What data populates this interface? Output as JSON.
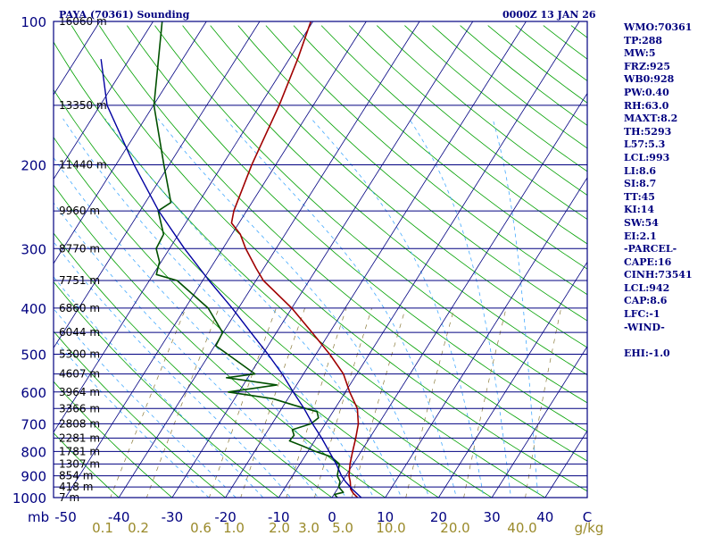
{
  "header": {
    "title_left": "PAYA (70361) Sounding",
    "title_right": "0000Z 13 JAN 26"
  },
  "indices": [
    "WMO:70361",
    "TP:288",
    "MW:5",
    "FRZ:925",
    "WB0:928",
    "PW:0.40",
    "RH:63.0",
    "MAXT:8.2",
    "TH:5293",
    "L57:5.3",
    "LCL:993",
    "LI:8.6",
    "SI:8.7",
    "TT:45",
    "KI:14",
    "SW:54",
    "EI:2.1",
    "-PARCEL-",
    "CAPE:16",
    "CINH:73541",
    "LCL:942",
    "CAP:8.6",
    "LFC:-1",
    "-WIND-",
    "",
    "EHI:-1.0"
  ],
  "colors": {
    "frame": "#000080",
    "isobar": "#000080",
    "isotherm": "#000080",
    "dry_adiabat": "#00a000",
    "moist_adiabat": "#44aaff",
    "mixing_ratio": "#8a7a3a",
    "temperature": "#a00000",
    "dewpoint": "#005000",
    "parcel": "#0000a0",
    "mixing_label": "#9a8a2a"
  },
  "chart_data": {
    "type": "skew-t log-p sounding",
    "title": "PAYA (70361) Sounding",
    "xlabel": "C",
    "ylabel": "mb",
    "x_units_label": "mb",
    "temp_axis_label": "C",
    "mixing_axis_label": "g/kg",
    "xlim": [
      -50,
      50
    ],
    "pressure_range": [
      1000,
      100
    ],
    "pressure_ticks": [
      1000,
      900,
      800,
      700,
      600,
      500,
      400,
      300,
      200,
      100
    ],
    "temp_ticks": [
      -50,
      -40,
      -30,
      -20,
      -10,
      0,
      10,
      20,
      30,
      40
    ],
    "mixing_ratio_ticks": [
      "0.1",
      "0.2",
      "0.6",
      "1.0",
      "2.0",
      "3.0",
      "5.0",
      "10.0",
      "20.0",
      "40.0"
    ],
    "heights": [
      {
        "p": 100,
        "label": "16060 m"
      },
      {
        "p": 150,
        "label": "13350 m"
      },
      {
        "p": 200,
        "label": "11440 m"
      },
      {
        "p": 250,
        "label": "9960 m"
      },
      {
        "p": 300,
        "label": "8770 m"
      },
      {
        "p": 350,
        "label": "7751 m"
      },
      {
        "p": 400,
        "label": "6860 m"
      },
      {
        "p": 450,
        "label": "6044 m"
      },
      {
        "p": 500,
        "label": "5300 m"
      },
      {
        "p": 550,
        "label": "4607 m"
      },
      {
        "p": 600,
        "label": "3964 m"
      },
      {
        "p": 650,
        "label": "3366 m"
      },
      {
        "p": 700,
        "label": "2808 m"
      },
      {
        "p": 750,
        "label": "2281 m"
      },
      {
        "p": 800,
        "label": "1781 m"
      },
      {
        "p": 850,
        "label": "1307 m"
      },
      {
        "p": 900,
        "label": "854 m"
      },
      {
        "p": 950,
        "label": "418 m"
      },
      {
        "p": 1000,
        "label": "7 m"
      }
    ],
    "series": [
      {
        "name": "Temperature",
        "points": [
          [
            1000,
            4.8
          ],
          [
            980,
            3.5
          ],
          [
            960,
            2.5
          ],
          [
            925,
            1.5
          ],
          [
            900,
            0.6
          ],
          [
            850,
            -0.6
          ],
          [
            800,
            -1.6
          ],
          [
            750,
            -2.6
          ],
          [
            700,
            -3.8
          ],
          [
            650,
            -5.8
          ],
          [
            600,
            -9.2
          ],
          [
            550,
            -12.5
          ],
          [
            500,
            -17.4
          ],
          [
            450,
            -23.3
          ],
          [
            400,
            -30.0
          ],
          [
            350,
            -38.6
          ],
          [
            330,
            -41.4
          ],
          [
            300,
            -45.7
          ],
          [
            280,
            -48.4
          ],
          [
            265,
            -51.4
          ],
          [
            250,
            -52.4
          ],
          [
            200,
            -54.5
          ],
          [
            150,
            -56.4
          ],
          [
            120,
            -58.4
          ],
          [
            100,
            -60.4
          ]
        ]
      },
      {
        "name": "Dewpoint",
        "points": [
          [
            1000,
            1.0
          ],
          [
            985,
            0.1
          ],
          [
            975,
            1.5
          ],
          [
            950,
            0.0
          ],
          [
            925,
            -0.4
          ],
          [
            900,
            -1.6
          ],
          [
            850,
            -2.6
          ],
          [
            820,
            -5.1
          ],
          [
            800,
            -8.6
          ],
          [
            780,
            -11.5
          ],
          [
            760,
            -14.7
          ],
          [
            740,
            -14.5
          ],
          [
            720,
            -15.5
          ],
          [
            700,
            -12.7
          ],
          [
            680,
            -12.0
          ],
          [
            660,
            -13.0
          ],
          [
            640,
            -18.0
          ],
          [
            620,
            -22.8
          ],
          [
            600,
            -32.0
          ],
          [
            580,
            -23.7
          ],
          [
            560,
            -34.0
          ],
          [
            550,
            -29.1
          ],
          [
            520,
            -33.5
          ],
          [
            480,
            -39.8
          ],
          [
            450,
            -40.1
          ],
          [
            400,
            -45.7
          ],
          [
            350,
            -54.8
          ],
          [
            340,
            -59.4
          ],
          [
            320,
            -60.3
          ],
          [
            300,
            -62.5
          ],
          [
            280,
            -62.8
          ],
          [
            250,
            -66.6
          ],
          [
            240,
            -65.2
          ],
          [
            200,
            -71.0
          ],
          [
            150,
            -79.9
          ],
          [
            100,
            -88.3
          ]
        ]
      },
      {
        "name": "Parcel",
        "points": [
          [
            1000,
            5.5
          ],
          [
            960,
            2.8
          ],
          [
            925,
            0.6
          ],
          [
            900,
            -0.8
          ],
          [
            850,
            -3.2
          ],
          [
            800,
            -6.0
          ],
          [
            750,
            -9.0
          ],
          [
            700,
            -12.4
          ],
          [
            650,
            -15.8
          ],
          [
            600,
            -19.8
          ],
          [
            550,
            -24.0
          ],
          [
            500,
            -29.0
          ],
          [
            450,
            -34.8
          ],
          [
            400,
            -41.2
          ],
          [
            350,
            -48.8
          ],
          [
            300,
            -57.2
          ],
          [
            250,
            -66.5
          ],
          [
            200,
            -76.6
          ],
          [
            150,
            -88.7
          ],
          [
            120,
            -95.3
          ]
        ]
      }
    ]
  }
}
